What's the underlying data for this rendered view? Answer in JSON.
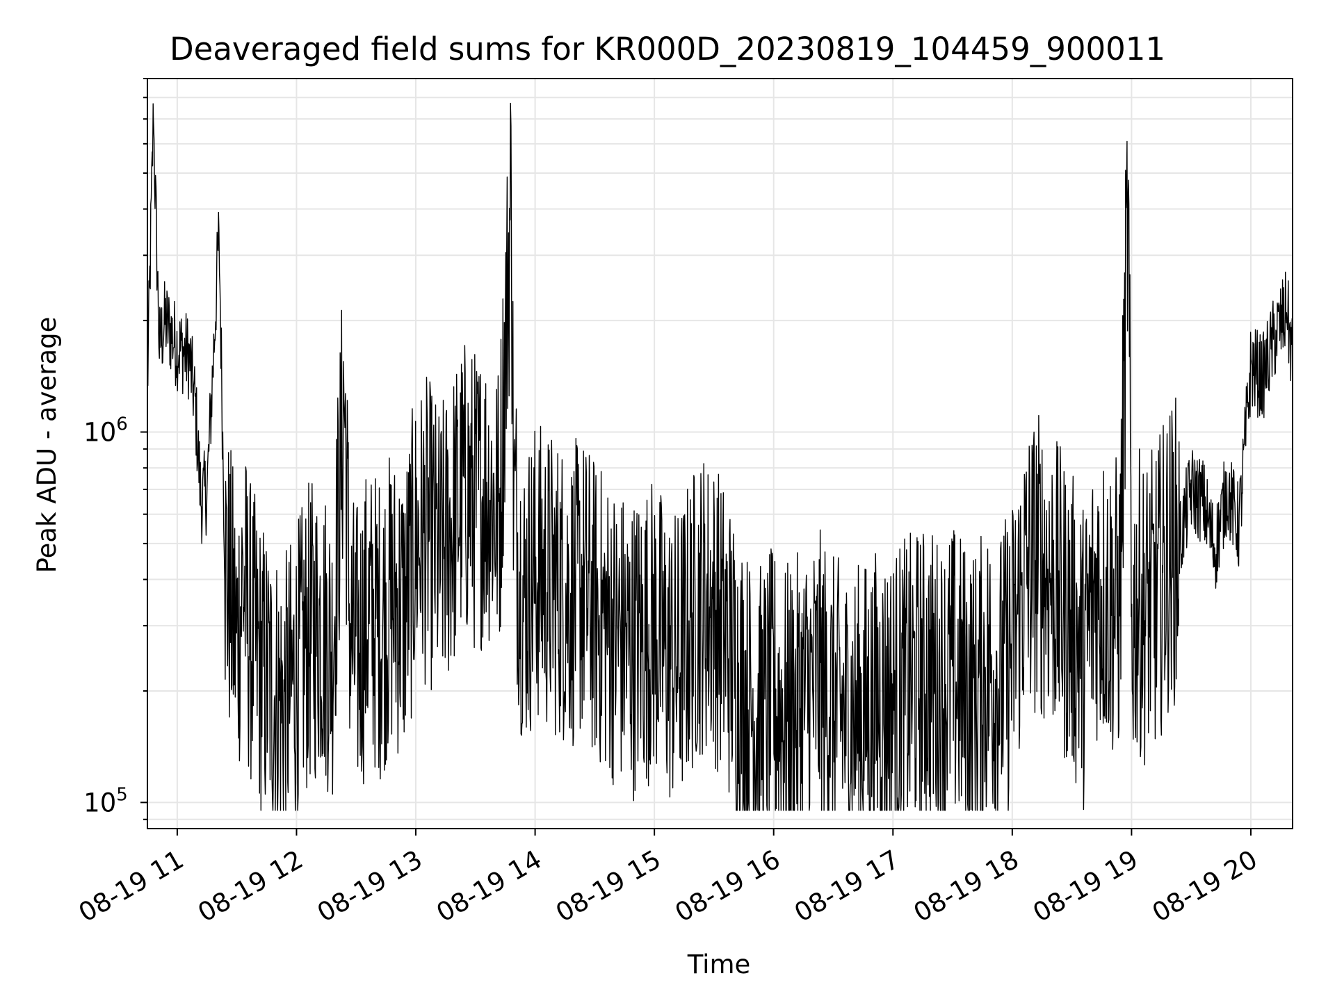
{
  "chart_data": {
    "type": "line",
    "title": "Deaveraged field sums for KR000D_20230819_104459_900011",
    "xlabel": "Time",
    "ylabel": "Peak ADU - average",
    "yscale": "log",
    "ylim": [
      85000,
      9000000
    ],
    "xlim_hours": [
      10.75,
      20.35
    ],
    "x_ticks": [
      {
        "hour": 11,
        "label": "08-19 11"
      },
      {
        "hour": 12,
        "label": "08-19 12"
      },
      {
        "hour": 13,
        "label": "08-19 13"
      },
      {
        "hour": 14,
        "label": "08-19 14"
      },
      {
        "hour": 15,
        "label": "08-19 15"
      },
      {
        "hour": 16,
        "label": "08-19 16"
      },
      {
        "hour": 17,
        "label": "08-19 17"
      },
      {
        "hour": 18,
        "label": "08-19 18"
      },
      {
        "hour": 19,
        "label": "08-19 19"
      },
      {
        "hour": 20,
        "label": "08-19 20"
      }
    ],
    "y_major_ticks": [
      {
        "value": 100000,
        "base": "10",
        "exp": "5"
      },
      {
        "value": 1000000,
        "base": "10",
        "exp": "6"
      }
    ],
    "grid": true,
    "series": [
      {
        "name": "Peak ADU - average",
        "color": "#000000",
        "x_hours": [
          10.75,
          10.8,
          10.85,
          10.9,
          11.0,
          11.1,
          11.15,
          11.2,
          11.25,
          11.3,
          11.35,
          11.4,
          11.45,
          11.5,
          11.55,
          11.6,
          11.7,
          11.8,
          11.9,
          12.0,
          12.1,
          12.2,
          12.3,
          12.38,
          12.4,
          12.45,
          12.5,
          12.6,
          12.7,
          12.8,
          12.9,
          13.0,
          13.1,
          13.2,
          13.3,
          13.4,
          13.5,
          13.6,
          13.7,
          13.8,
          13.82,
          13.9,
          14.0,
          14.1,
          14.2,
          14.3,
          14.4,
          14.5,
          14.6,
          14.7,
          14.8,
          14.9,
          15.0,
          15.1,
          15.2,
          15.3,
          15.4,
          15.5,
          15.6,
          15.7,
          15.8,
          15.9,
          16.0,
          16.1,
          16.2,
          16.3,
          16.4,
          16.5,
          16.6,
          16.7,
          16.8,
          16.9,
          17.0,
          17.1,
          17.2,
          17.3,
          17.4,
          17.5,
          17.6,
          17.7,
          17.8,
          17.9,
          18.0,
          18.1,
          18.2,
          18.3,
          18.4,
          18.5,
          18.6,
          18.7,
          18.8,
          18.9,
          18.97,
          19.0,
          19.05,
          19.1,
          19.2,
          19.3,
          19.4,
          19.5,
          19.6,
          19.7,
          19.8,
          19.9,
          20.0,
          20.1,
          20.2,
          20.3,
          20.35
        ],
        "values": [
          1300000,
          7000000,
          1700000,
          2000000,
          1700000,
          1600000,
          1200000,
          650000,
          700000,
          1500000,
          3500000,
          450000,
          350000,
          270000,
          400000,
          300000,
          230000,
          200000,
          180000,
          220000,
          280000,
          300000,
          260000,
          900000,
          1300000,
          280000,
          250000,
          320000,
          300000,
          350000,
          330000,
          500000,
          550000,
          450000,
          560000,
          700000,
          650000,
          700000,
          600000,
          4500000,
          650000,
          350000,
          420000,
          400000,
          380000,
          360000,
          380000,
          330000,
          300000,
          280000,
          260000,
          280000,
          300000,
          250000,
          240000,
          300000,
          350000,
          330000,
          280000,
          220000,
          180000,
          170000,
          190000,
          170000,
          180000,
          200000,
          210000,
          180000,
          170000,
          170000,
          180000,
          190000,
          190000,
          200000,
          210000,
          220000,
          200000,
          220000,
          200000,
          190000,
          230000,
          210000,
          260000,
          400000,
          450000,
          420000,
          350000,
          300000,
          250000,
          380000,
          350000,
          330000,
          4200000,
          300000,
          350000,
          330000,
          350000,
          450000,
          500000,
          700000,
          650000,
          480000,
          700000,
          550000,
          1500000,
          1400000,
          1800000,
          2100000,
          1600000
        ]
      }
    ]
  }
}
